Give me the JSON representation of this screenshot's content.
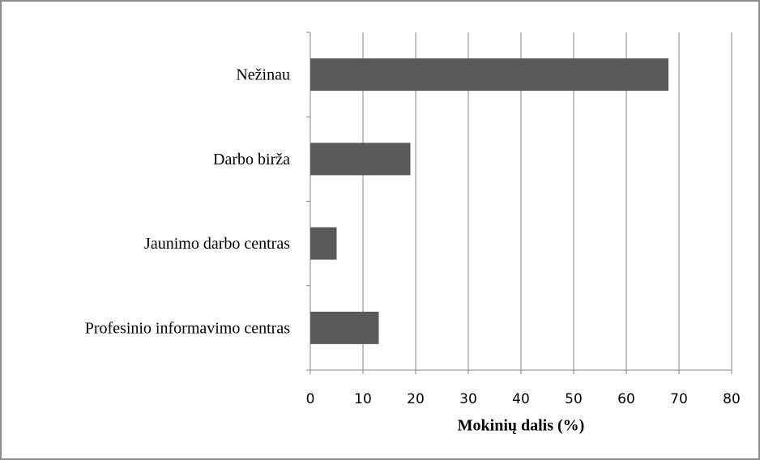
{
  "chart_data": {
    "type": "barh",
    "categories": [
      "Nežinau",
      "Darbo birža",
      "Jaunimo darbo centras",
      "Profesinio informavimo centras"
    ],
    "values": [
      68,
      19,
      5,
      13
    ],
    "color": "#595959",
    "xlabel": "Mokinių dalis (%)",
    "xlim": [
      0,
      80
    ],
    "xticks": [
      0,
      10,
      20,
      30,
      40,
      50,
      60,
      70,
      80
    ],
    "grid": true
  }
}
